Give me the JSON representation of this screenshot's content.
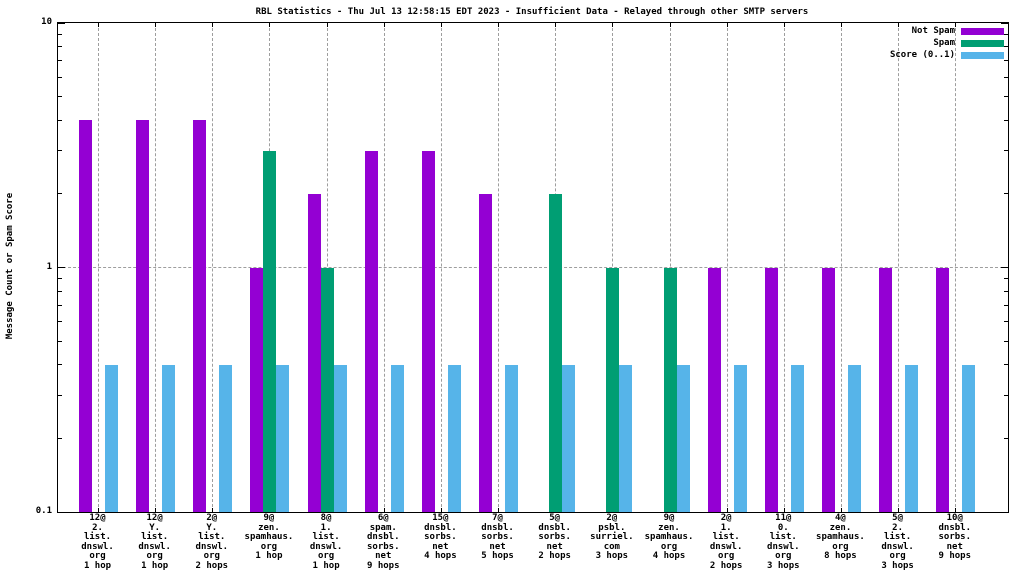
{
  "title": "RBL Statistics - Thu Jul 13 12:58:15 EDT 2023 - Insufficient Data - Relayed through other SMTP servers",
  "chart_data": {
    "type": "bar",
    "title": "RBL Statistics - Thu Jul 13 12:58:15 EDT 2023 - Insufficient Data - Relayed through other SMTP servers",
    "ylabel": "Message Count or Spam Score",
    "xlabel": "",
    "yscale": "log",
    "ylim": [
      0.1,
      10
    ],
    "grid": true,
    "legend_position": "top-right",
    "yticks": [
      {
        "value": 10,
        "label": "10",
        "grid": false
      },
      {
        "value": 1,
        "label": "1",
        "grid": true
      },
      {
        "value": 0.1,
        "label": "0.1",
        "grid": false
      }
    ],
    "categories": [
      [
        "12@",
        "2.",
        "list.",
        "dnswl.",
        "org",
        "1 hop"
      ],
      [
        "12@",
        "Y.",
        "list.",
        "dnswl.",
        "org",
        "1 hop"
      ],
      [
        "2@",
        "Y.",
        "list.",
        "dnswl.",
        "org",
        "2 hops"
      ],
      [
        "9@",
        "zen.",
        "spamhaus.",
        "org",
        "1 hop"
      ],
      [
        "8@",
        "1.",
        "list.",
        "dnswl.",
        "org",
        "1 hop"
      ],
      [
        "6@",
        "spam.",
        "dnsbl.",
        "sorbs.",
        "net",
        "9 hops"
      ],
      [
        "15@",
        "dnsbl.",
        "sorbs.",
        "net",
        "4 hops"
      ],
      [
        "7@",
        "dnsbl.",
        "sorbs.",
        "net",
        "5 hops"
      ],
      [
        "5@",
        "dnsbl.",
        "sorbs.",
        "net",
        "2 hops"
      ],
      [
        "2@",
        "psbl.",
        "surriel.",
        "com",
        "3 hops"
      ],
      [
        "9@",
        "zen.",
        "spamhaus.",
        "org",
        "4 hops"
      ],
      [
        "2@",
        "1.",
        "list.",
        "dnswl.",
        "org",
        "2 hops"
      ],
      [
        "11@",
        "0.",
        "list.",
        "dnswl.",
        "org",
        "3 hops"
      ],
      [
        "4@",
        "zen.",
        "spamhaus.",
        "org",
        "8 hops"
      ],
      [
        "5@",
        "2.",
        "list.",
        "dnswl.",
        "org",
        "3 hops"
      ],
      [
        "10@",
        "dnsbl.",
        "sorbs.",
        "net",
        "9 hops"
      ]
    ],
    "series": [
      {
        "key": "not-spam",
        "name": "Not Spam",
        "color": "#9400d3",
        "values": [
          4,
          4,
          4,
          1,
          2,
          3,
          3,
          2,
          null,
          null,
          null,
          1,
          1,
          1,
          1,
          1
        ]
      },
      {
        "key": "spam",
        "name": "Spam",
        "color": "#009e73",
        "values": [
          null,
          null,
          null,
          3,
          1,
          null,
          null,
          null,
          2,
          1,
          1,
          null,
          null,
          null,
          null,
          null
        ]
      },
      {
        "key": "score",
        "name": "Score (0..1)",
        "color": "#56b4e9",
        "values": [
          0.4,
          0.4,
          0.4,
          0.4,
          0.4,
          0.4,
          0.4,
          0.4,
          0.4,
          0.4,
          0.4,
          0.4,
          0.4,
          0.4,
          0.4,
          0.4
        ]
      }
    ]
  }
}
